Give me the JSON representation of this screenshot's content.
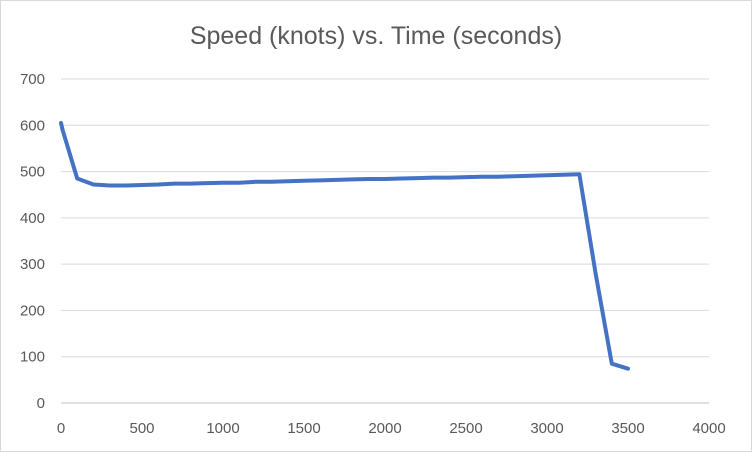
{
  "chart_data": {
    "type": "line",
    "title": "Speed (knots) vs. Time (seconds)",
    "xlabel": "",
    "ylabel": "",
    "xlim": [
      0,
      4000
    ],
    "ylim": [
      0,
      700
    ],
    "x_ticks": [
      0,
      500,
      1000,
      1500,
      2000,
      2500,
      3000,
      3500,
      4000
    ],
    "y_ticks": [
      0,
      100,
      200,
      300,
      400,
      500,
      600,
      700
    ],
    "grid": "horizontal",
    "legend": "none",
    "series": [
      {
        "color": "#4472c4",
        "x": [
          0,
          10,
          100,
          200,
          300,
          400,
          500,
          600,
          700,
          800,
          900,
          1000,
          1100,
          1200,
          1300,
          1400,
          1500,
          1600,
          1700,
          1800,
          1900,
          2000,
          2100,
          2200,
          2300,
          2400,
          2500,
          2600,
          2700,
          2800,
          2900,
          3000,
          3100,
          3200,
          3300,
          3400,
          3500
        ],
        "y": [
          605,
          590,
          485,
          472,
          470,
          470,
          471,
          472,
          474,
          474,
          475,
          476,
          476,
          478,
          478,
          479,
          480,
          481,
          482,
          483,
          484,
          484,
          485,
          486,
          487,
          487,
          488,
          489,
          489,
          490,
          491,
          492,
          493,
          494,
          280,
          85,
          74
        ]
      }
    ]
  }
}
